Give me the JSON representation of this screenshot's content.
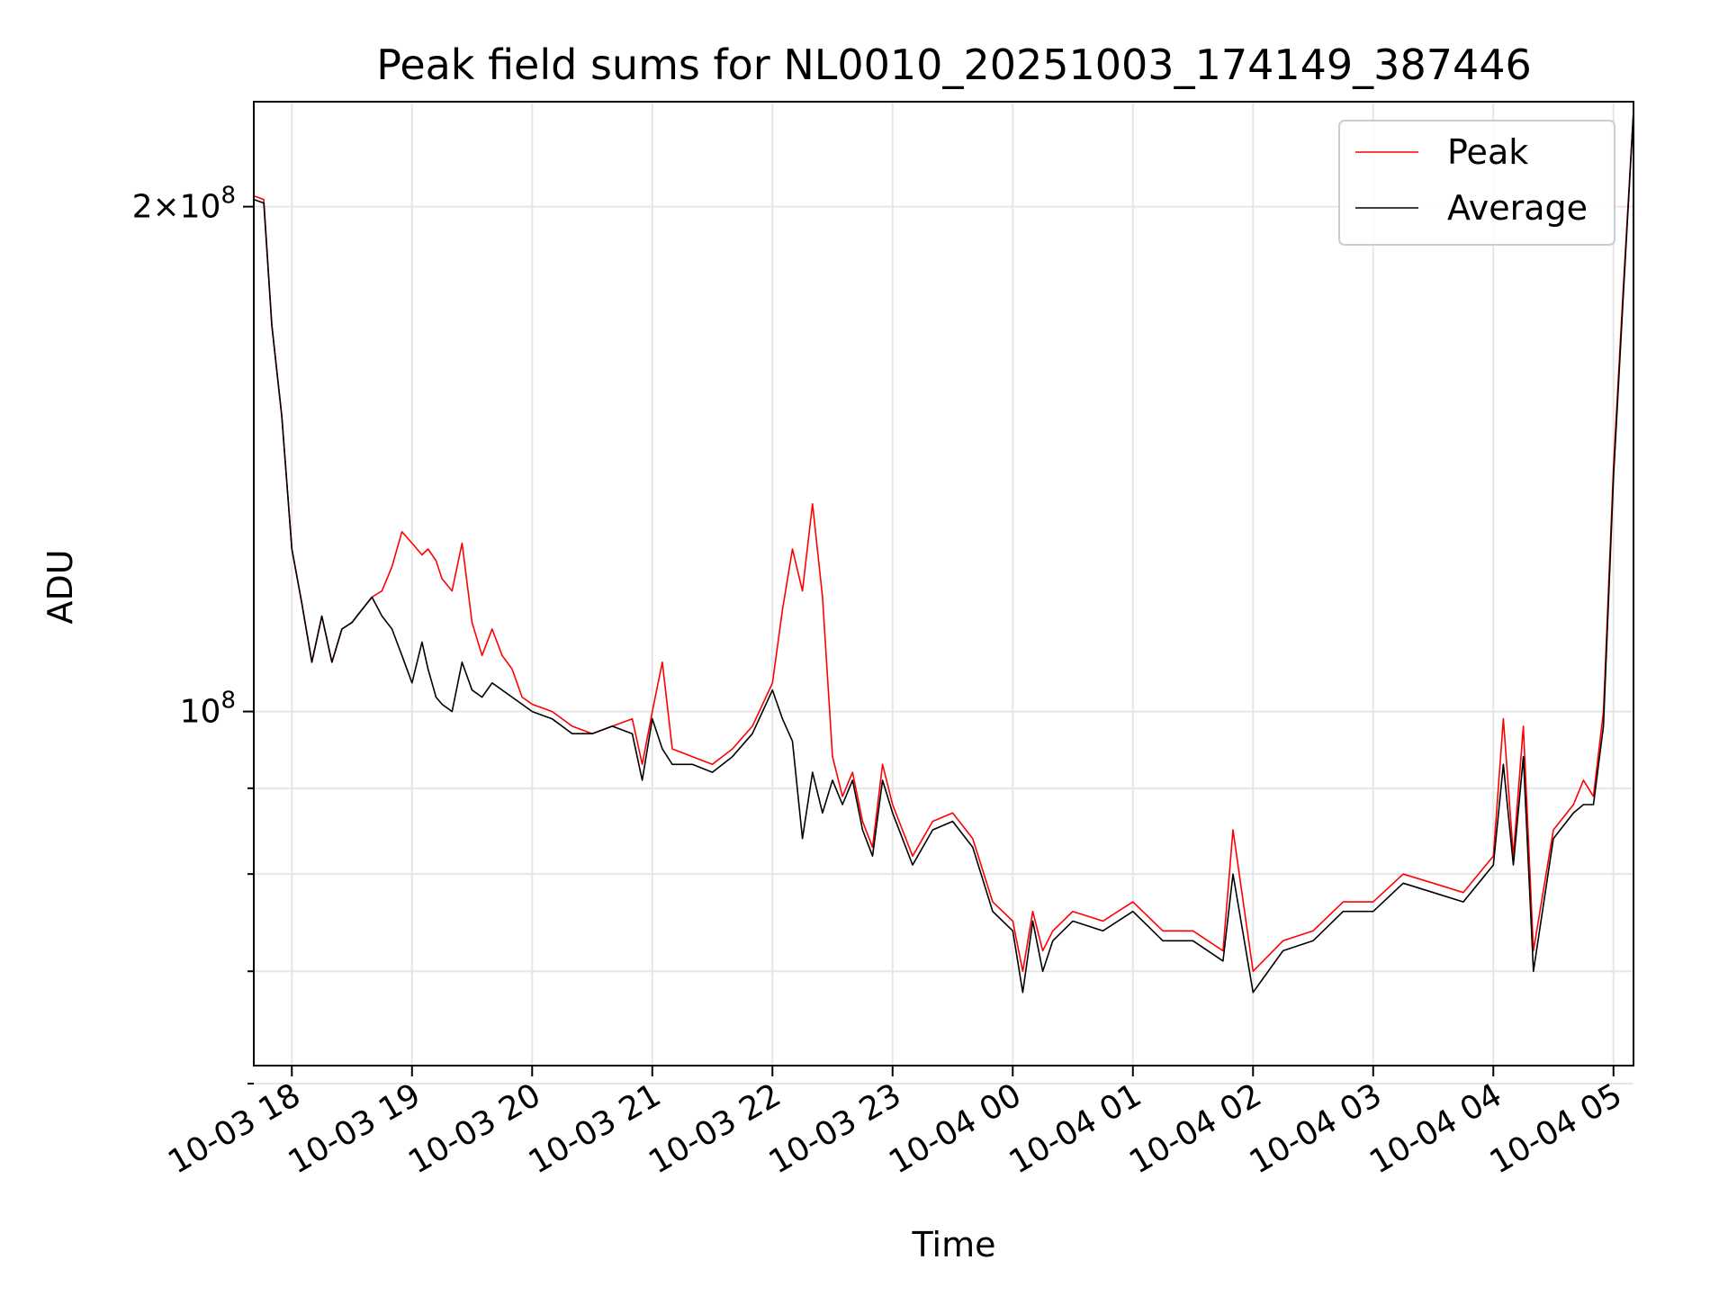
{
  "chart_data": {
    "type": "line",
    "title": "Peak field sums for NL0010_20251003_174149_387446",
    "xlabel": "Time",
    "ylabel": "ADU",
    "x_unit": "datetime",
    "x_tick_labels": [
      "10-03 18",
      "10-03 19",
      "10-03 20",
      "10-03 21",
      "10-03 22",
      "10-03 23",
      "10-04 00",
      "10-04 01",
      "10-04 02",
      "10-04 03",
      "10-04 04",
      "10-04 05"
    ],
    "x_ticks": [
      "2025-10-03 18:00",
      "2025-10-03 19:00",
      "2025-10-03 20:00",
      "2025-10-03 21:00",
      "2025-10-03 22:00",
      "2025-10-03 23:00",
      "2025-10-04 00:00",
      "2025-10-04 01:00",
      "2025-10-04 02:00",
      "2025-10-04 03:00",
      "2025-10-04 04:00",
      "2025-10-04 05:00"
    ],
    "xlim": [
      "2025-10-03 17:41",
      "2025-10-04 05:10"
    ],
    "y_scale": "log",
    "ylim": [
      61500000,
      231000000
    ],
    "y_major_ticks": [
      {
        "value": 100000000,
        "base": "10",
        "exp": "8"
      },
      {
        "value": 200000000,
        "mant": "2",
        "base": "10",
        "exp": "8"
      }
    ],
    "y_minor_ticks": [
      60000000,
      70000000,
      80000000,
      90000000
    ],
    "grid": true,
    "legend_position": "top-right",
    "series": [
      {
        "name": "Peak",
        "color": "#ff0000",
        "x": [
          "2025-10-03 17:41",
          "2025-10-03 17:46",
          "2025-10-03 17:50",
          "2025-10-03 17:55",
          "2025-10-03 18:00",
          "2025-10-03 18:05",
          "2025-10-03 18:10",
          "2025-10-03 18:15",
          "2025-10-03 18:20",
          "2025-10-03 18:25",
          "2025-10-03 18:30",
          "2025-10-03 18:35",
          "2025-10-03 18:40",
          "2025-10-03 18:45",
          "2025-10-03 18:50",
          "2025-10-03 18:55",
          "2025-10-03 19:00",
          "2025-10-03 19:05",
          "2025-10-03 19:08",
          "2025-10-03 19:12",
          "2025-10-03 19:15",
          "2025-10-03 19:20",
          "2025-10-03 19:25",
          "2025-10-03 19:30",
          "2025-10-03 19:35",
          "2025-10-03 19:40",
          "2025-10-03 19:45",
          "2025-10-03 19:50",
          "2025-10-03 19:55",
          "2025-10-03 20:00",
          "2025-10-03 20:10",
          "2025-10-03 20:20",
          "2025-10-03 20:30",
          "2025-10-03 20:40",
          "2025-10-03 20:50",
          "2025-10-03 20:55",
          "2025-10-03 21:00",
          "2025-10-03 21:05",
          "2025-10-03 21:10",
          "2025-10-03 21:20",
          "2025-10-03 21:30",
          "2025-10-03 21:40",
          "2025-10-03 21:50",
          "2025-10-03 22:00",
          "2025-10-03 22:05",
          "2025-10-03 22:10",
          "2025-10-03 22:15",
          "2025-10-03 22:20",
          "2025-10-03 22:25",
          "2025-10-03 22:30",
          "2025-10-03 22:35",
          "2025-10-03 22:40",
          "2025-10-03 22:45",
          "2025-10-03 22:50",
          "2025-10-03 22:55",
          "2025-10-03 23:00",
          "2025-10-03 23:10",
          "2025-10-03 23:20",
          "2025-10-03 23:30",
          "2025-10-03 23:40",
          "2025-10-03 23:50",
          "2025-10-04 00:00",
          "2025-10-04 00:05",
          "2025-10-04 00:10",
          "2025-10-04 00:15",
          "2025-10-04 00:20",
          "2025-10-04 00:30",
          "2025-10-04 00:45",
          "2025-10-04 01:00",
          "2025-10-04 01:15",
          "2025-10-04 01:30",
          "2025-10-04 01:45",
          "2025-10-04 01:50",
          "2025-10-04 02:00",
          "2025-10-04 02:15",
          "2025-10-04 02:30",
          "2025-10-04 02:45",
          "2025-10-04 03:00",
          "2025-10-04 03:15",
          "2025-10-04 03:30",
          "2025-10-04 03:45",
          "2025-10-04 04:00",
          "2025-10-04 04:05",
          "2025-10-04 04:10",
          "2025-10-04 04:15",
          "2025-10-04 04:20",
          "2025-10-04 04:30",
          "2025-10-04 04:40",
          "2025-10-04 04:45",
          "2025-10-04 04:50",
          "2025-10-04 04:55",
          "2025-10-04 05:00",
          "2025-10-04 05:05",
          "2025-10-04 05:10"
        ],
        "y": [
          203000000,
          202000000,
          170000000,
          150000000,
          125000000,
          116000000,
          107000000,
          114000000,
          107000000,
          112000000,
          113000000,
          115000000,
          117000000,
          118000000,
          122000000,
          128000000,
          126000000,
          124000000,
          125000000,
          123000000,
          120000000,
          118000000,
          126000000,
          113000000,
          108000000,
          112000000,
          108000000,
          106000000,
          102000000,
          101000000,
          100000000,
          98000000,
          97000000,
          98000000,
          99000000,
          93000000,
          100000000,
          107000000,
          95000000,
          94000000,
          93000000,
          95000000,
          98000000,
          104000000,
          115000000,
          125000000,
          118000000,
          133000000,
          117000000,
          94000000,
          89000000,
          92000000,
          86000000,
          83000000,
          93000000,
          88000000,
          82000000,
          86000000,
          87000000,
          84000000,
          77000000,
          75000000,
          70000000,
          76000000,
          72000000,
          74000000,
          76000000,
          75000000,
          77000000,
          74000000,
          74000000,
          72000000,
          85000000,
          70000000,
          73000000,
          74000000,
          77000000,
          77000000,
          80000000,
          79000000,
          78000000,
          82000000,
          99000000,
          82000000,
          98000000,
          72000000,
          85000000,
          88000000,
          91000000,
          89000000,
          100000000,
          140000000,
          180000000,
          228000000
        ]
      },
      {
        "name": "Average",
        "color": "#000000",
        "x": [
          "2025-10-03 17:41",
          "2025-10-03 17:46",
          "2025-10-03 17:50",
          "2025-10-03 17:55",
          "2025-10-03 18:00",
          "2025-10-03 18:05",
          "2025-10-03 18:10",
          "2025-10-03 18:15",
          "2025-10-03 18:20",
          "2025-10-03 18:25",
          "2025-10-03 18:30",
          "2025-10-03 18:35",
          "2025-10-03 18:40",
          "2025-10-03 18:45",
          "2025-10-03 18:50",
          "2025-10-03 18:55",
          "2025-10-03 19:00",
          "2025-10-03 19:05",
          "2025-10-03 19:08",
          "2025-10-03 19:12",
          "2025-10-03 19:15",
          "2025-10-03 19:20",
          "2025-10-03 19:25",
          "2025-10-03 19:30",
          "2025-10-03 19:35",
          "2025-10-03 19:40",
          "2025-10-03 19:45",
          "2025-10-03 19:50",
          "2025-10-03 19:55",
          "2025-10-03 20:00",
          "2025-10-03 20:10",
          "2025-10-03 20:20",
          "2025-10-03 20:30",
          "2025-10-03 20:40",
          "2025-10-03 20:50",
          "2025-10-03 20:55",
          "2025-10-03 21:00",
          "2025-10-03 21:05",
          "2025-10-03 21:10",
          "2025-10-03 21:20",
          "2025-10-03 21:30",
          "2025-10-03 21:40",
          "2025-10-03 21:50",
          "2025-10-03 22:00",
          "2025-10-03 22:05",
          "2025-10-03 22:10",
          "2025-10-03 22:15",
          "2025-10-03 22:20",
          "2025-10-03 22:25",
          "2025-10-03 22:30",
          "2025-10-03 22:35",
          "2025-10-03 22:40",
          "2025-10-03 22:45",
          "2025-10-03 22:50",
          "2025-10-03 22:55",
          "2025-10-03 23:00",
          "2025-10-03 23:10",
          "2025-10-03 23:20",
          "2025-10-03 23:30",
          "2025-10-03 23:40",
          "2025-10-03 23:50",
          "2025-10-04 00:00",
          "2025-10-04 00:05",
          "2025-10-04 00:10",
          "2025-10-04 00:15",
          "2025-10-04 00:20",
          "2025-10-04 00:30",
          "2025-10-04 00:45",
          "2025-10-04 01:00",
          "2025-10-04 01:15",
          "2025-10-04 01:30",
          "2025-10-04 01:45",
          "2025-10-04 01:50",
          "2025-10-04 02:00",
          "2025-10-04 02:15",
          "2025-10-04 02:30",
          "2025-10-04 02:45",
          "2025-10-04 03:00",
          "2025-10-04 03:15",
          "2025-10-04 03:30",
          "2025-10-04 03:45",
          "2025-10-04 04:00",
          "2025-10-04 04:05",
          "2025-10-04 04:10",
          "2025-10-04 04:15",
          "2025-10-04 04:20",
          "2025-10-04 04:30",
          "2025-10-04 04:40",
          "2025-10-04 04:45",
          "2025-10-04 04:50",
          "2025-10-04 04:55",
          "2025-10-04 05:00",
          "2025-10-04 05:05",
          "2025-10-04 05:10"
        ],
        "y": [
          202000000,
          201000000,
          170000000,
          150000000,
          125000000,
          116000000,
          107000000,
          114000000,
          107000000,
          112000000,
          113000000,
          115000000,
          117000000,
          114000000,
          112000000,
          108000000,
          104000000,
          110000000,
          106000000,
          102000000,
          101000000,
          100000000,
          107000000,
          103000000,
          102000000,
          104000000,
          103000000,
          102000000,
          101000000,
          100000000,
          99000000,
          97000000,
          97000000,
          98000000,
          97000000,
          91000000,
          99000000,
          95000000,
          93000000,
          93000000,
          92000000,
          94000000,
          97000000,
          103000000,
          99000000,
          96000000,
          84000000,
          92000000,
          87000000,
          91000000,
          88000000,
          91000000,
          85000000,
          82000000,
          91000000,
          87000000,
          81000000,
          85000000,
          86000000,
          83000000,
          76000000,
          74000000,
          68000000,
          75000000,
          70000000,
          73000000,
          75000000,
          74000000,
          76000000,
          73000000,
          73000000,
          71000000,
          80000000,
          68000000,
          72000000,
          73000000,
          76000000,
          76000000,
          79000000,
          78000000,
          77000000,
          81000000,
          93000000,
          81000000,
          94000000,
          70000000,
          84000000,
          87000000,
          88000000,
          88000000,
          98000000,
          138000000,
          178000000,
          228000000
        ]
      }
    ]
  }
}
